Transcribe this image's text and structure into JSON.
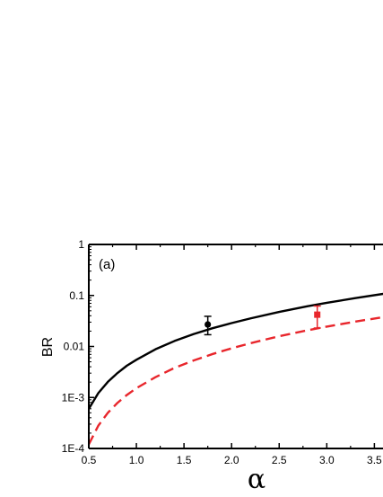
{
  "chart_data": {
    "type": "line",
    "panel_label": "(a)",
    "xlabel": "α",
    "ylabel": "BR",
    "xlim": [
      0.5,
      3.6
    ],
    "ylim": [
      0.0001,
      1
    ],
    "yscale": "log",
    "grid": false,
    "legend": "none",
    "x_ticks": [
      0.5,
      1.0,
      1.5,
      2.0,
      2.5,
      3.0,
      3.5
    ],
    "x_tick_labels": [
      "0.5",
      "1.0",
      "1.5",
      "2.0",
      "2.5",
      "3.0",
      "3.5"
    ],
    "y_ticks": [
      0.0001,
      0.001,
      0.01,
      0.1,
      1
    ],
    "y_tick_labels": [
      "1E-4",
      "1E-3",
      "0.01",
      "0.1",
      "1"
    ],
    "series": [
      {
        "style": "solid",
        "color": "#000000",
        "x": [
          0.5,
          0.6,
          0.7,
          0.8,
          0.9,
          1.0,
          1.2,
          1.4,
          1.6,
          1.8,
          2.0,
          2.2,
          2.5,
          2.8,
          3.0,
          3.3,
          3.6
        ],
        "y": [
          0.0006,
          0.00122,
          0.00202,
          0.003,
          0.0042,
          0.00548,
          0.0088,
          0.0128,
          0.0175,
          0.0228,
          0.0287,
          0.0355,
          0.0475,
          0.0616,
          0.0716,
          0.0888,
          0.108
        ]
      },
      {
        "style": "dashed",
        "color": "#e8262c",
        "x": [
          0.5,
          0.6,
          0.7,
          0.8,
          0.9,
          1.0,
          1.2,
          1.4,
          1.6,
          1.8,
          2.0,
          2.2,
          2.5,
          2.8,
          3.0,
          3.3,
          3.6
        ],
        "y": [
          0.00012,
          0.00028,
          0.0005,
          0.00078,
          0.00112,
          0.00152,
          0.0025,
          0.0038,
          0.0053,
          0.0071,
          0.0092,
          0.0116,
          0.0159,
          0.0208,
          0.0245,
          0.0307,
          0.0378
        ]
      }
    ],
    "points": [
      {
        "marker": "circle",
        "color": "#000000",
        "x": 1.75,
        "y": 0.027,
        "y_low": 0.017,
        "y_high": 0.039
      },
      {
        "marker": "square",
        "color": "#e8262c",
        "x": 2.9,
        "y": 0.042,
        "y_low": 0.023,
        "y_high": 0.062
      }
    ]
  }
}
